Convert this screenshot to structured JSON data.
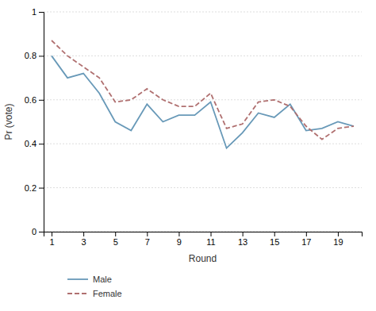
{
  "chart_data": {
    "type": "line",
    "xlabel": "Round",
    "ylabel": "Pr (vote)",
    "x": [
      1,
      2,
      3,
      4,
      5,
      6,
      7,
      8,
      9,
      10,
      11,
      12,
      13,
      14,
      15,
      16,
      17,
      18,
      19,
      20
    ],
    "series": [
      {
        "name": "Male",
        "color": "#6899b8",
        "line_style": "solid",
        "values": [
          0.8,
          0.7,
          0.72,
          0.63,
          0.5,
          0.46,
          0.58,
          0.5,
          0.53,
          0.53,
          0.59,
          0.38,
          0.45,
          0.54,
          0.52,
          0.58,
          0.46,
          0.47,
          0.5,
          0.48
        ]
      },
      {
        "name": "Female",
        "color": "#b07070",
        "line_style": "dashed",
        "values": [
          0.87,
          0.8,
          0.75,
          0.7,
          0.59,
          0.6,
          0.65,
          0.6,
          0.57,
          0.57,
          0.63,
          0.47,
          0.49,
          0.59,
          0.6,
          0.57,
          0.48,
          0.42,
          0.47,
          0.48
        ]
      }
    ],
    "xlim": [
      0.5,
      20.5
    ],
    "ylim": [
      0,
      1
    ],
    "xticks": [
      1,
      3,
      5,
      7,
      9,
      11,
      13,
      15,
      17,
      19
    ],
    "yticks": [
      0,
      0.2,
      0.4,
      0.6,
      0.8,
      1
    ],
    "grid": "y",
    "legend": "below"
  }
}
